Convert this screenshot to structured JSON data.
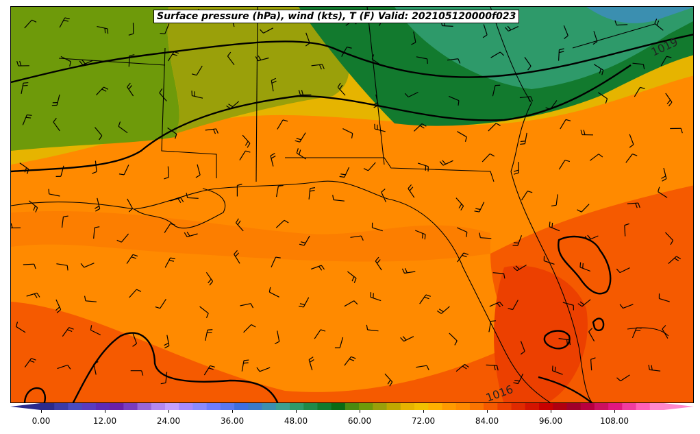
{
  "title": "Surface pressure (hPa), wind (kts), T (F) Valid: 202105120000f023",
  "isobar_labels": [
    "1019",
    "1016"
  ],
  "colorbar": {
    "ticks": [
      "0.00",
      "12.00",
      "24.00",
      "36.00",
      "48.00",
      "60.00",
      "72.00",
      "84.00",
      "96.00",
      "108.00"
    ],
    "colors": [
      "#2b2b8c",
      "#3b3ba6",
      "#4b4bbf",
      "#5a3cbf",
      "#5e2bb5",
      "#6a20a8",
      "#7a3cc0",
      "#9966d9",
      "#b388f0",
      "#c4a0ff",
      "#a78bff",
      "#8a8aff",
      "#6f7dff",
      "#5a78f0",
      "#3f6fe0",
      "#3a7ac8",
      "#3b8fb0",
      "#3ba090",
      "#2e9a6a",
      "#1f8a4a",
      "#127a2e",
      "#0b6a14",
      "#4a8a10",
      "#6e9a0a",
      "#9aa00a",
      "#c0a800",
      "#e6b400",
      "#f2c000",
      "#ffb000",
      "#ff9a00",
      "#ff8a00",
      "#fa7400",
      "#f55a00",
      "#ec4000",
      "#e02a00",
      "#d41400",
      "#c80000",
      "#b00010",
      "#a0002a",
      "#b80040",
      "#cc1060",
      "#e01880",
      "#f03ca0",
      "#ff60b8",
      "#ff88cc"
    ]
  }
}
